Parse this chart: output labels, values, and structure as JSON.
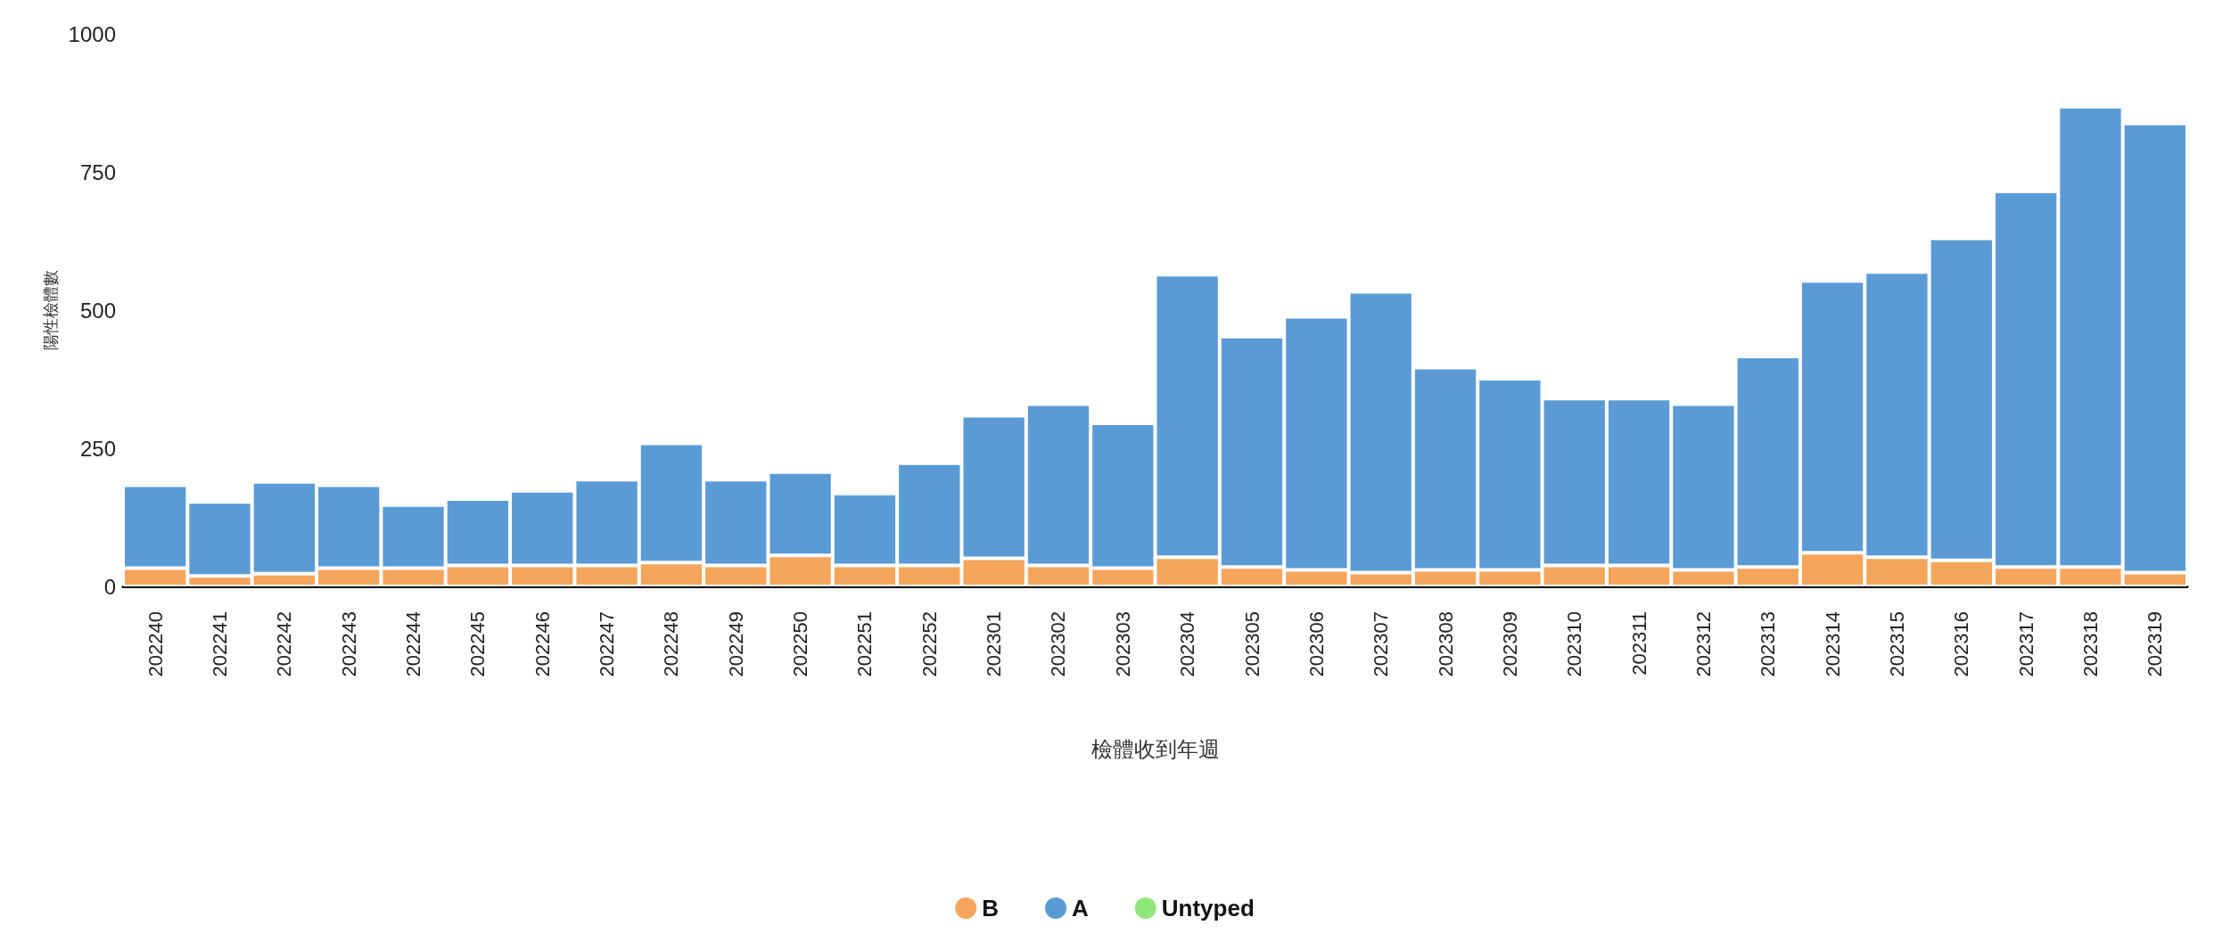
{
  "chart_data": {
    "type": "bar",
    "stacked": true,
    "xlabel": "檢體收到年週",
    "ylabel": "陽性檢體數",
    "categories": [
      "202240",
      "202241",
      "202242",
      "202243",
      "202244",
      "202245",
      "202246",
      "202247",
      "202248",
      "202249",
      "202250",
      "202251",
      "202252",
      "202301",
      "202302",
      "202303",
      "202304",
      "202305",
      "202306",
      "202307",
      "202308",
      "202309",
      "202310",
      "202311",
      "202312",
      "202313",
      "202314",
      "202315",
      "202316",
      "202317",
      "202318",
      "202319"
    ],
    "series": [
      {
        "name": "B",
        "color": "#f5a55c",
        "values": [
          33,
          19,
          23,
          33,
          33,
          38,
          38,
          38,
          43,
          38,
          56,
          38,
          38,
          51,
          38,
          33,
          53,
          35,
          30,
          25,
          30,
          30,
          38,
          38,
          30,
          35,
          61,
          53,
          47,
          35,
          35,
          25
        ]
      },
      {
        "name": "A",
        "color": "#5b9bd5",
        "values": [
          150,
          134,
          166,
          150,
          114,
          120,
          135,
          155,
          216,
          155,
          151,
          130,
          185,
          258,
          292,
          262,
          511,
          417,
          458,
          508,
          366,
          346,
          302,
          302,
          300,
          381,
          492,
          516,
          583,
          680,
          833,
          813
        ]
      },
      {
        "name": "Untyped",
        "color": "#90e67a",
        "values": [
          null,
          null,
          null,
          null,
          null,
          null,
          null,
          null,
          null,
          null,
          null,
          null,
          null,
          null,
          null,
          null,
          null,
          null,
          null,
          null,
          null,
          null,
          null,
          null,
          null,
          null,
          null,
          null,
          null,
          null,
          null,
          null
        ]
      }
    ],
    "ylim": [
      0,
      1000
    ],
    "yticks": [
      0,
      250,
      500,
      750,
      1000
    ],
    "grid": false,
    "legend": "bottom"
  }
}
